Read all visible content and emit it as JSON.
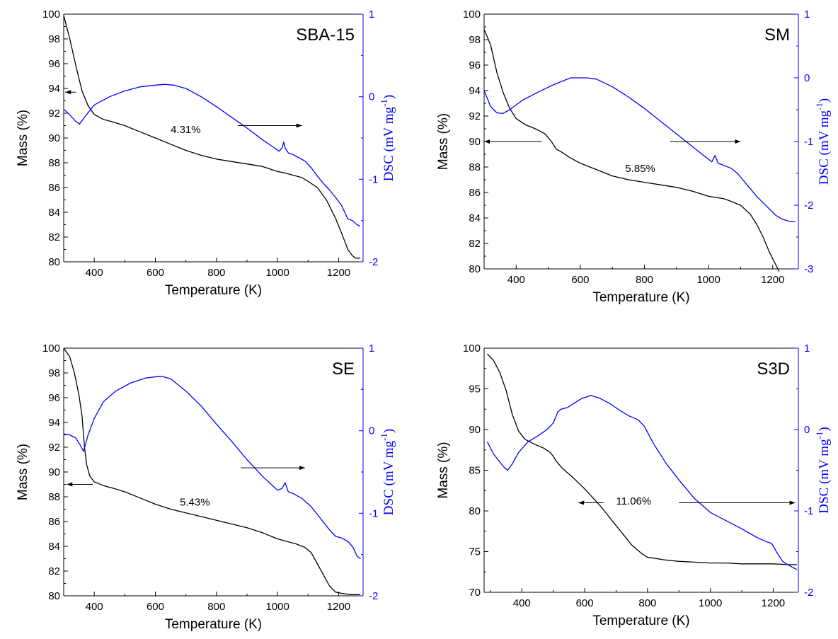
{
  "chart_data": [
    {
      "type": "line",
      "title": "SBA-15",
      "xlabel": "Temperature (K)",
      "ylabel": "Mass (%)",
      "y2label": "DSC (mV mg",
      "y2label_sup": "-1",
      "y2label_end": ")",
      "annotation": "4.31%",
      "xlim": [
        300,
        1280
      ],
      "ylim": [
        80,
        100
      ],
      "y2lim": [
        -2,
        1
      ],
      "xticks": [
        400,
        600,
        800,
        1000,
        1200
      ],
      "yticks": [
        80,
        82,
        84,
        86,
        88,
        90,
        92,
        94,
        96,
        98,
        100
      ],
      "y2ticks": [
        -2,
        -1,
        0,
        1
      ],
      "annotation_pos": [
        650,
        90.4
      ],
      "arrows": [
        {
          "axis": "left",
          "from": [
            340,
            93.7
          ],
          "to": [
            305,
            93.7
          ]
        },
        {
          "axis": "right",
          "from": [
            870,
            -0.35
          ],
          "to": [
            1080,
            -0.35
          ]
        }
      ],
      "series": [
        {
          "name": "",
          "axis": "left",
          "color": "#000000",
          "x": [
            300,
            320,
            340,
            360,
            380,
            400,
            430,
            460,
            500,
            550,
            600,
            650,
            700,
            750,
            800,
            850,
            900,
            950,
            1000,
            1020,
            1050,
            1080,
            1100,
            1130,
            1160,
            1190,
            1210,
            1230,
            1245,
            1255,
            1270
          ],
          "y": [
            99.9,
            98.0,
            95.8,
            93.8,
            92.6,
            91.9,
            91.5,
            91.3,
            91.0,
            90.5,
            90.0,
            89.5,
            89.0,
            88.6,
            88.3,
            88.1,
            87.9,
            87.7,
            87.3,
            87.2,
            87.0,
            86.8,
            86.5,
            86.0,
            85.0,
            83.5,
            82.3,
            81.0,
            80.5,
            80.3,
            80.3
          ]
        },
        {
          "name": "",
          "axis": "right",
          "color": "#0000ff",
          "x": [
            300,
            320,
            340,
            352,
            370,
            400,
            450,
            500,
            550,
            600,
            630,
            660,
            700,
            750,
            800,
            850,
            900,
            950,
            990,
            1005,
            1015,
            1020,
            1025,
            1035,
            1050,
            1070,
            1090,
            1110,
            1130,
            1150,
            1170,
            1190,
            1210,
            1220,
            1230,
            1245,
            1260,
            1270
          ],
          "y": [
            -0.15,
            -0.22,
            -0.3,
            -0.33,
            -0.24,
            -0.1,
            0.0,
            0.07,
            0.12,
            0.14,
            0.15,
            0.14,
            0.1,
            0.0,
            -0.12,
            -0.25,
            -0.38,
            -0.52,
            -0.62,
            -0.66,
            -0.62,
            -0.55,
            -0.62,
            -0.68,
            -0.7,
            -0.74,
            -0.78,
            -0.86,
            -0.96,
            -1.05,
            -1.13,
            -1.22,
            -1.32,
            -1.4,
            -1.48,
            -1.5,
            -1.55,
            -1.57
          ]
        }
      ]
    },
    {
      "type": "line",
      "title": "SM",
      "xlabel": "Temperature (K)",
      "ylabel": "Mass (%)",
      "y2label": "DSC (mV mg",
      "y2label_sup": "-1",
      "y2label_end": ")",
      "annotation": "5.85%",
      "xlim": [
        300,
        1280
      ],
      "ylim": [
        80,
        100
      ],
      "y2lim": [
        -3,
        1
      ],
      "xticks": [
        400,
        600,
        800,
        1000,
        1200
      ],
      "yticks": [
        80,
        82,
        84,
        86,
        88,
        90,
        92,
        94,
        96,
        98,
        100
      ],
      "y2ticks": [
        -3,
        -2,
        -1,
        0,
        1
      ],
      "annotation_pos": [
        740,
        87.6
      ],
      "arrows": [
        {
          "axis": "left",
          "from": [
            480,
            90.0
          ],
          "to": [
            300,
            90.0
          ]
        },
        {
          "axis": "right",
          "from": [
            880,
            -1.0
          ],
          "to": [
            1100,
            -1.0
          ]
        }
      ],
      "series": [
        {
          "name": "",
          "axis": "left",
          "color": "#000000",
          "x": [
            300,
            320,
            340,
            360,
            380,
            400,
            430,
            460,
            490,
            510,
            525,
            540,
            570,
            600,
            650,
            700,
            750,
            800,
            850,
            900,
            950,
            1000,
            1050,
            1100,
            1130,
            1150,
            1170,
            1190,
            1210,
            1220
          ],
          "y": [
            98.8,
            97.6,
            95.4,
            93.8,
            92.6,
            91.8,
            91.3,
            91.0,
            90.6,
            90.0,
            89.4,
            89.2,
            88.7,
            88.3,
            87.8,
            87.3,
            87.0,
            86.8,
            86.6,
            86.4,
            86.1,
            85.7,
            85.5,
            85.0,
            84.3,
            83.5,
            82.5,
            81.3,
            80.3,
            79.8
          ]
        },
        {
          "name": "",
          "axis": "right",
          "color": "#0000ff",
          "x": [
            300,
            320,
            340,
            358,
            380,
            420,
            470,
            520,
            570,
            620,
            650,
            700,
            750,
            800,
            850,
            900,
            950,
            990,
            1010,
            1020,
            1030,
            1050,
            1070,
            1090,
            1110,
            1130,
            1150,
            1170,
            1190,
            1210,
            1230,
            1250,
            1270
          ],
          "y": [
            -0.2,
            -0.45,
            -0.55,
            -0.56,
            -0.5,
            -0.35,
            -0.22,
            -0.1,
            0.0,
            0.0,
            -0.02,
            -0.14,
            -0.3,
            -0.48,
            -0.68,
            -0.88,
            -1.08,
            -1.24,
            -1.32,
            -1.22,
            -1.34,
            -1.38,
            -1.42,
            -1.5,
            -1.62,
            -1.74,
            -1.86,
            -1.96,
            -2.06,
            -2.16,
            -2.22,
            -2.25,
            -2.26
          ]
        }
      ]
    },
    {
      "type": "line",
      "title": "SE",
      "xlabel": "Temperature (K)",
      "ylabel": "Mass (%)",
      "y2label": "DSC (mV mg",
      "y2label_sup": "-1",
      "y2label_end": ")",
      "annotation": "5.43%",
      "xlim": [
        300,
        1280
      ],
      "ylim": [
        80,
        100
      ],
      "y2lim": [
        -2,
        1
      ],
      "xticks": [
        400,
        600,
        800,
        1000,
        1200
      ],
      "yticks": [
        80,
        82,
        84,
        86,
        88,
        90,
        92,
        94,
        96,
        98,
        100
      ],
      "y2ticks": [
        -2,
        -1,
        0,
        1
      ],
      "annotation_pos": [
        680,
        87.3
      ],
      "arrows": [
        {
          "axis": "left",
          "from": [
            395,
            89.0
          ],
          "to": [
            310,
            89.0
          ]
        },
        {
          "axis": "right",
          "from": [
            880,
            -0.45
          ],
          "to": [
            1090,
            -0.45
          ]
        }
      ],
      "series": [
        {
          "name": "",
          "axis": "left",
          "color": "#000000",
          "x": [
            300,
            320,
            335,
            350,
            360,
            368,
            375,
            385,
            400,
            430,
            460,
            500,
            550,
            600,
            650,
            700,
            750,
            800,
            850,
            900,
            950,
            1000,
            1030,
            1060,
            1090,
            1110,
            1130,
            1150,
            1170,
            1190,
            1210,
            1240,
            1270
          ],
          "y": [
            100.0,
            99.3,
            98.0,
            96.2,
            94.5,
            92.0,
            90.6,
            89.7,
            89.2,
            88.9,
            88.7,
            88.4,
            87.9,
            87.4,
            87.0,
            86.7,
            86.4,
            86.1,
            85.8,
            85.5,
            85.1,
            84.6,
            84.4,
            84.2,
            83.9,
            83.5,
            82.6,
            81.7,
            80.8,
            80.3,
            80.2,
            80.1,
            80.1
          ]
        },
        {
          "name": "",
          "axis": "right",
          "color": "#0000ff",
          "x": [
            300,
            320,
            340,
            355,
            365,
            380,
            400,
            430,
            470,
            520,
            570,
            620,
            650,
            700,
            750,
            800,
            850,
            900,
            950,
            1000,
            1015,
            1025,
            1035,
            1050,
            1080,
            1110,
            1140,
            1170,
            1190,
            1210,
            1230,
            1240,
            1248,
            1260,
            1272
          ],
          "y": [
            -0.04,
            -0.05,
            -0.09,
            -0.18,
            -0.25,
            -0.05,
            0.15,
            0.35,
            0.48,
            0.58,
            0.64,
            0.66,
            0.63,
            0.48,
            0.3,
            0.08,
            -0.13,
            -0.35,
            -0.55,
            -0.72,
            -0.7,
            -0.63,
            -0.74,
            -0.76,
            -0.82,
            -0.92,
            -1.06,
            -1.2,
            -1.28,
            -1.3,
            -1.34,
            -1.38,
            -1.42,
            -1.52,
            -1.55
          ]
        }
      ]
    },
    {
      "type": "line",
      "title": "S3D",
      "xlabel": "Temperature (K)",
      "ylabel": "Mass (%)",
      "y2label": "DSC (mV mg",
      "y2label_sup": "-1",
      "y2label_end": ")",
      "annotation": "11.06%",
      "xlim": [
        280,
        1280
      ],
      "ylim": [
        70,
        100
      ],
      "y2lim": [
        -2,
        1
      ],
      "xticks": [
        400,
        600,
        800,
        1000,
        1200
      ],
      "yticks": [
        70,
        75,
        80,
        85,
        90,
        95,
        100
      ],
      "y2ticks": [
        -2,
        -1,
        0,
        1
      ],
      "annotation_pos": [
        700,
        80.8
      ],
      "arrows": [
        {
          "axis": "left",
          "from": [
            660,
            81.0
          ],
          "to": [
            580,
            81.0
          ]
        },
        {
          "axis": "right",
          "from": [
            900,
            -0.9
          ],
          "to": [
            1270,
            -0.9
          ]
        }
      ],
      "series": [
        {
          "name": "",
          "axis": "left",
          "color": "#000000",
          "x": [
            290,
            310,
            330,
            350,
            370,
            390,
            410,
            440,
            470,
            490,
            500,
            510,
            530,
            560,
            600,
            650,
            700,
            750,
            780,
            800,
            820,
            850,
            900,
            950,
            1000,
            1050,
            1100,
            1150,
            1200,
            1250,
            1275
          ],
          "y": [
            99.3,
            98.5,
            97.0,
            94.8,
            91.8,
            89.8,
            88.8,
            88.2,
            87.7,
            87.2,
            86.7,
            86.1,
            85.2,
            84.2,
            82.7,
            80.6,
            78.2,
            75.8,
            74.8,
            74.3,
            74.2,
            74.0,
            73.8,
            73.7,
            73.6,
            73.6,
            73.5,
            73.5,
            73.5,
            73.4,
            73.4
          ]
        },
        {
          "name": "",
          "axis": "right",
          "color": "#0000ff",
          "x": [
            290,
            310,
            330,
            345,
            355,
            370,
            390,
            420,
            450,
            480,
            500,
            515,
            525,
            545,
            565,
            590,
            620,
            650,
            680,
            710,
            740,
            770,
            790,
            820,
            860,
            900,
            950,
            1000,
            1050,
            1100,
            1150,
            1180,
            1195,
            1210,
            1230,
            1255,
            1275
          ],
          "y": [
            -0.15,
            -0.3,
            -0.4,
            -0.47,
            -0.5,
            -0.42,
            -0.28,
            -0.15,
            -0.08,
            0.0,
            0.08,
            0.22,
            0.25,
            0.27,
            0.32,
            0.38,
            0.42,
            0.38,
            0.32,
            0.24,
            0.17,
            0.12,
            0.04,
            -0.18,
            -0.42,
            -0.62,
            -0.85,
            -1.02,
            -1.12,
            -1.22,
            -1.33,
            -1.38,
            -1.4,
            -1.5,
            -1.62,
            -1.68,
            -1.72
          ]
        }
      ]
    }
  ]
}
